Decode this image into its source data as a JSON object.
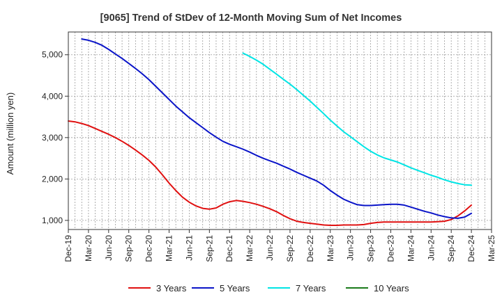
{
  "chart_data": {
    "type": "line",
    "title": "[9065]  Trend of StDev of 12-Month Moving Sum of Net Incomes",
    "ylabel": "Amount (million yen)",
    "xlabel": "",
    "ylim": [
      780,
      5550
    ],
    "y_ticks": [
      1000,
      2000,
      3000,
      4000,
      5000
    ],
    "y_tick_labels": [
      "1,000",
      "2,000",
      "3,000",
      "4,000",
      "5,000"
    ],
    "x_tick_labels": [
      "Dec-19",
      "Mar-20",
      "Jun-20",
      "Sep-20",
      "Dec-20",
      "Mar-21",
      "Jun-21",
      "Sep-21",
      "Dec-21",
      "Mar-22",
      "Jun-22",
      "Sep-22",
      "Dec-22",
      "Mar-23",
      "Jun-23",
      "Sep-23",
      "Dec-23",
      "Mar-24",
      "Jun-24",
      "Sep-24",
      "Dec-24",
      "Mar-25"
    ],
    "grid": true,
    "legend_position": "bottom",
    "series": [
      {
        "name": "3 Years",
        "color": "#e01010",
        "points": [
          [
            "Dec-19",
            3400
          ],
          [
            "Jan-20",
            3380
          ],
          [
            "Feb-20",
            3340
          ],
          [
            "Mar-20",
            3290
          ],
          [
            "Apr-20",
            3220
          ],
          [
            "May-20",
            3150
          ],
          [
            "Jun-20",
            3080
          ],
          [
            "Jul-20",
            3000
          ],
          [
            "Aug-20",
            2910
          ],
          [
            "Sep-20",
            2810
          ],
          [
            "Oct-20",
            2700
          ],
          [
            "Nov-20",
            2580
          ],
          [
            "Dec-20",
            2450
          ],
          [
            "Jan-21",
            2290
          ],
          [
            "Feb-21",
            2100
          ],
          [
            "Mar-21",
            1900
          ],
          [
            "Apr-21",
            1720
          ],
          [
            "May-21",
            1560
          ],
          [
            "Jun-21",
            1440
          ],
          [
            "Jul-21",
            1350
          ],
          [
            "Aug-21",
            1290
          ],
          [
            "Sep-21",
            1270
          ],
          [
            "Oct-21",
            1300
          ],
          [
            "Nov-21",
            1390
          ],
          [
            "Dec-21",
            1450
          ],
          [
            "Jan-22",
            1480
          ],
          [
            "Feb-22",
            1460
          ],
          [
            "Mar-22",
            1430
          ],
          [
            "Apr-22",
            1390
          ],
          [
            "May-22",
            1340
          ],
          [
            "Jun-22",
            1280
          ],
          [
            "Jul-22",
            1210
          ],
          [
            "Aug-22",
            1120
          ],
          [
            "Sep-22",
            1040
          ],
          [
            "Oct-22",
            980
          ],
          [
            "Nov-22",
            950
          ],
          [
            "Dec-22",
            930
          ],
          [
            "Jan-23",
            910
          ],
          [
            "Feb-23",
            890
          ],
          [
            "Mar-23",
            880
          ],
          [
            "Apr-23",
            880
          ],
          [
            "May-23",
            890
          ],
          [
            "Jun-23",
            890
          ],
          [
            "Jul-23",
            890
          ],
          [
            "Aug-23",
            900
          ],
          [
            "Sep-23",
            930
          ],
          [
            "Oct-23",
            950
          ],
          [
            "Nov-23",
            960
          ],
          [
            "Dec-23",
            960
          ],
          [
            "Jan-24",
            960
          ],
          [
            "Feb-24",
            960
          ],
          [
            "Mar-24",
            960
          ],
          [
            "Apr-24",
            960
          ],
          [
            "May-24",
            960
          ],
          [
            "Jun-24",
            960
          ],
          [
            "Jul-24",
            970
          ],
          [
            "Aug-24",
            980
          ],
          [
            "Sep-24",
            1020
          ],
          [
            "Oct-24",
            1110
          ],
          [
            "Nov-24",
            1230
          ],
          [
            "Dec-24",
            1370
          ]
        ]
      },
      {
        "name": "5 Years",
        "color": "#0a14c8",
        "points": [
          [
            "Feb-20",
            5380
          ],
          [
            "Mar-20",
            5350
          ],
          [
            "Apr-20",
            5300
          ],
          [
            "May-20",
            5230
          ],
          [
            "Jun-20",
            5130
          ],
          [
            "Jul-20",
            5020
          ],
          [
            "Aug-20",
            4910
          ],
          [
            "Sep-20",
            4790
          ],
          [
            "Oct-20",
            4670
          ],
          [
            "Nov-20",
            4540
          ],
          [
            "Dec-20",
            4400
          ],
          [
            "Jan-21",
            4240
          ],
          [
            "Feb-21",
            4080
          ],
          [
            "Mar-21",
            3920
          ],
          [
            "Apr-21",
            3760
          ],
          [
            "May-21",
            3620
          ],
          [
            "Jun-21",
            3480
          ],
          [
            "Jul-21",
            3360
          ],
          [
            "Aug-21",
            3240
          ],
          [
            "Sep-21",
            3120
          ],
          [
            "Oct-21",
            3010
          ],
          [
            "Nov-21",
            2910
          ],
          [
            "Dec-21",
            2840
          ],
          [
            "Jan-22",
            2780
          ],
          [
            "Feb-22",
            2720
          ],
          [
            "Mar-22",
            2650
          ],
          [
            "Apr-22",
            2570
          ],
          [
            "May-22",
            2500
          ],
          [
            "Jun-22",
            2440
          ],
          [
            "Jul-22",
            2380
          ],
          [
            "Aug-22",
            2310
          ],
          [
            "Sep-22",
            2240
          ],
          [
            "Oct-22",
            2160
          ],
          [
            "Nov-22",
            2090
          ],
          [
            "Dec-22",
            2020
          ],
          [
            "Jan-23",
            1950
          ],
          [
            "Feb-23",
            1850
          ],
          [
            "Mar-23",
            1720
          ],
          [
            "Apr-23",
            1610
          ],
          [
            "May-23",
            1510
          ],
          [
            "Jun-23",
            1440
          ],
          [
            "Jul-23",
            1380
          ],
          [
            "Aug-23",
            1360
          ],
          [
            "Sep-23",
            1360
          ],
          [
            "Oct-23",
            1370
          ],
          [
            "Nov-23",
            1380
          ],
          [
            "Dec-23",
            1390
          ],
          [
            "Jan-24",
            1390
          ],
          [
            "Feb-24",
            1370
          ],
          [
            "Mar-24",
            1320
          ],
          [
            "Apr-24",
            1270
          ],
          [
            "May-24",
            1220
          ],
          [
            "Jun-24",
            1180
          ],
          [
            "Jul-24",
            1130
          ],
          [
            "Aug-24",
            1090
          ],
          [
            "Sep-24",
            1060
          ],
          [
            "Oct-24",
            1050
          ],
          [
            "Nov-24",
            1080
          ],
          [
            "Dec-24",
            1170
          ]
        ]
      },
      {
        "name": "7 Years",
        "color": "#00e5e5",
        "points": [
          [
            "Feb-22",
            5040
          ],
          [
            "Mar-22",
            4960
          ],
          [
            "Apr-22",
            4870
          ],
          [
            "May-22",
            4770
          ],
          [
            "Jun-22",
            4650
          ],
          [
            "Jul-22",
            4530
          ],
          [
            "Aug-22",
            4410
          ],
          [
            "Sep-22",
            4290
          ],
          [
            "Oct-22",
            4160
          ],
          [
            "Nov-22",
            4020
          ],
          [
            "Dec-22",
            3880
          ],
          [
            "Jan-23",
            3730
          ],
          [
            "Feb-23",
            3580
          ],
          [
            "Mar-23",
            3420
          ],
          [
            "Apr-23",
            3280
          ],
          [
            "May-23",
            3140
          ],
          [
            "Jun-23",
            3020
          ],
          [
            "Jul-23",
            2900
          ],
          [
            "Aug-23",
            2780
          ],
          [
            "Sep-23",
            2670
          ],
          [
            "Oct-23",
            2580
          ],
          [
            "Nov-23",
            2510
          ],
          [
            "Dec-23",
            2460
          ],
          [
            "Jan-24",
            2410
          ],
          [
            "Feb-24",
            2340
          ],
          [
            "Mar-24",
            2270
          ],
          [
            "Apr-24",
            2210
          ],
          [
            "May-24",
            2150
          ],
          [
            "Jun-24",
            2090
          ],
          [
            "Jul-24",
            2040
          ],
          [
            "Aug-24",
            1980
          ],
          [
            "Sep-24",
            1930
          ],
          [
            "Oct-24",
            1890
          ],
          [
            "Nov-24",
            1860
          ],
          [
            "Dec-24",
            1850
          ]
        ]
      },
      {
        "name": "10 Years",
        "color": "#1a7a1a",
        "points": []
      }
    ]
  }
}
